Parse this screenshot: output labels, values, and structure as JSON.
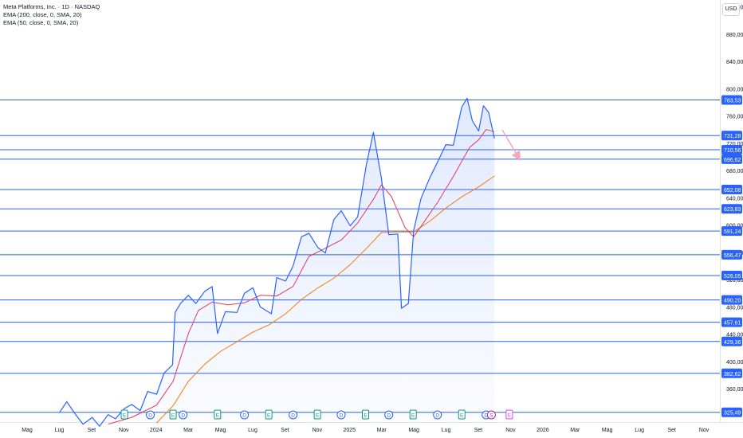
{
  "legend": {
    "title": "Meta Platforms, Inc. · 1D · NASDAQ",
    "ema200": "EMA (200, close, 0, SMA, 20)",
    "ema50": "EMA (50, close, 0, SMA, 20)"
  },
  "currency": "USD",
  "colors": {
    "price": "#2962ff",
    "area_fill": "#2962ff",
    "ema50": "#e03a56",
    "ema200": "#f57c00",
    "level": "#2962ff",
    "level_label_bg": "#2962ff",
    "arrow": "#f7a6b4",
    "axis_text": "#131722"
  },
  "chart_data": {
    "type": "line",
    "title": "Meta Platforms, Inc. · 1D · NASDAQ",
    "ylim": [
      310,
      930
    ],
    "y_ticks": [
      "920,00",
      "880,00",
      "840,00",
      "800,00",
      "760,00",
      "720,00",
      "680,00",
      "640,00",
      "600,00",
      "560,00",
      "520,00",
      "480,00",
      "440,00",
      "400,00",
      "360,00"
    ],
    "x_ticks": [
      "Mag",
      "Lug",
      "Set",
      "Nov",
      "2024",
      "Mar",
      "Mag",
      "Lug",
      "Set",
      "Nov",
      "2025",
      "Mar",
      "Mag",
      "Lug",
      "Set",
      "Nov",
      "2026",
      "Mar",
      "Mag",
      "Lug",
      "Set",
      "Nov"
    ],
    "levels": [
      "783,53",
      "731,28",
      "710,56",
      "696,62",
      "652,08",
      "623,83",
      "591,24",
      "556,47",
      "526,05",
      "490,20",
      "457,61",
      "429,36",
      "382,62",
      "325,49"
    ],
    "series": [
      {
        "name": "Meta Platforms, Inc.",
        "values": [
          [
            "2023-07-01",
            325
          ],
          [
            "2023-07-15",
            341
          ],
          [
            "2023-08-01",
            322
          ],
          [
            "2023-08-15",
            308
          ],
          [
            "2023-09-01",
            318
          ],
          [
            "2023-09-15",
            305
          ],
          [
            "2023-10-01",
            322
          ],
          [
            "2023-10-15",
            316
          ],
          [
            "2023-11-01",
            331
          ],
          [
            "2023-11-15",
            337
          ],
          [
            "2023-12-01",
            328
          ],
          [
            "2023-12-15",
            356
          ],
          [
            "2024-01-01",
            352
          ],
          [
            "2024-01-15",
            383
          ],
          [
            "2024-01-31",
            395
          ],
          [
            "2024-02-05",
            472
          ],
          [
            "2024-02-15",
            485
          ],
          [
            "2024-03-01",
            497
          ],
          [
            "2024-03-15",
            485
          ],
          [
            "2024-04-01",
            503
          ],
          [
            "2024-04-15",
            510
          ],
          [
            "2024-04-25",
            441
          ],
          [
            "2024-05-10",
            473
          ],
          [
            "2024-06-01",
            472
          ],
          [
            "2024-06-15",
            500
          ],
          [
            "2024-07-01",
            508
          ],
          [
            "2024-07-15",
            480
          ],
          [
            "2024-08-05",
            470
          ],
          [
            "2024-08-15",
            523
          ],
          [
            "2024-09-01",
            518
          ],
          [
            "2024-09-15",
            540
          ],
          [
            "2024-10-01",
            583
          ],
          [
            "2024-10-15",
            588
          ],
          [
            "2024-11-01",
            567
          ],
          [
            "2024-11-15",
            559
          ],
          [
            "2024-12-01",
            608
          ],
          [
            "2024-12-15",
            621
          ],
          [
            "2025-01-01",
            599
          ],
          [
            "2025-01-15",
            612
          ],
          [
            "2025-02-01",
            690
          ],
          [
            "2025-02-14",
            736
          ],
          [
            "2025-03-01",
            669
          ],
          [
            "2025-03-15",
            586
          ],
          [
            "2025-04-01",
            587
          ],
          [
            "2025-04-08",
            478
          ],
          [
            "2025-04-21",
            485
          ],
          [
            "2025-05-01",
            592
          ],
          [
            "2025-05-15",
            639
          ],
          [
            "2025-06-01",
            670
          ],
          [
            "2025-06-15",
            692
          ],
          [
            "2025-07-01",
            718
          ],
          [
            "2025-07-15",
            717
          ],
          [
            "2025-07-31",
            773
          ],
          [
            "2025-08-10",
            786
          ],
          [
            "2025-08-20",
            753
          ],
          [
            "2025-09-01",
            738
          ],
          [
            "2025-09-10",
            775
          ],
          [
            "2025-09-20",
            765
          ],
          [
            "2025-10-01",
            727
          ]
        ]
      },
      {
        "name": "EMA (50, close, 0, SMA, 20)",
        "values": [
          [
            "2023-10-01",
            308
          ],
          [
            "2023-11-15",
            318
          ],
          [
            "2024-01-01",
            336
          ],
          [
            "2024-02-01",
            371
          ],
          [
            "2024-03-01",
            441
          ],
          [
            "2024-03-20",
            475
          ],
          [
            "2024-04-15",
            487
          ],
          [
            "2024-05-15",
            483
          ],
          [
            "2024-06-15",
            486
          ],
          [
            "2024-07-15",
            497
          ],
          [
            "2024-08-15",
            496
          ],
          [
            "2024-09-15",
            510
          ],
          [
            "2024-10-15",
            554
          ],
          [
            "2024-11-15",
            566
          ],
          [
            "2024-12-15",
            578
          ],
          [
            "2025-01-15",
            603
          ],
          [
            "2025-02-15",
            639
          ],
          [
            "2025-03-01",
            659
          ],
          [
            "2025-03-20",
            642
          ],
          [
            "2025-04-15",
            596
          ],
          [
            "2025-05-01",
            583
          ],
          [
            "2025-05-15",
            598
          ],
          [
            "2025-06-15",
            633
          ],
          [
            "2025-07-15",
            671
          ],
          [
            "2025-08-01",
            695
          ],
          [
            "2025-08-15",
            714
          ],
          [
            "2025-09-01",
            725
          ],
          [
            "2025-09-15",
            740
          ],
          [
            "2025-10-01",
            737
          ]
        ]
      },
      {
        "name": "EMA (200, close, 0, SMA, 20)",
        "values": [
          [
            "2024-01-01",
            310
          ],
          [
            "2024-02-01",
            335
          ],
          [
            "2024-03-01",
            371
          ],
          [
            "2024-04-01",
            396
          ],
          [
            "2024-05-01",
            415
          ],
          [
            "2024-06-01",
            429
          ],
          [
            "2024-07-01",
            443
          ],
          [
            "2024-08-01",
            454
          ],
          [
            "2024-09-01",
            470
          ],
          [
            "2024-10-01",
            491
          ],
          [
            "2024-11-01",
            508
          ],
          [
            "2024-12-01",
            522
          ],
          [
            "2025-01-01",
            542
          ],
          [
            "2025-02-01",
            566
          ],
          [
            "2025-03-01",
            589
          ],
          [
            "2025-04-01",
            590
          ],
          [
            "2025-05-01",
            590
          ],
          [
            "2025-06-01",
            606
          ],
          [
            "2025-07-01",
            625
          ],
          [
            "2025-08-01",
            642
          ],
          [
            "2025-09-01",
            656
          ],
          [
            "2025-10-01",
            672
          ]
        ]
      }
    ],
    "events": [
      {
        "date": "2023-11-01",
        "type": "E"
      },
      {
        "date": "2023-12-20",
        "type": "D"
      },
      {
        "date": "2024-02-01",
        "type": "E"
      },
      {
        "date": "2024-02-20",
        "type": "D"
      },
      {
        "date": "2024-04-25",
        "type": "E"
      },
      {
        "date": "2024-06-15",
        "type": "D"
      },
      {
        "date": "2024-07-31",
        "type": "E"
      },
      {
        "date": "2024-09-15",
        "type": "D"
      },
      {
        "date": "2024-10-31",
        "type": "E"
      },
      {
        "date": "2024-12-15",
        "type": "D"
      },
      {
        "date": "2025-01-30",
        "type": "E"
      },
      {
        "date": "2025-03-15",
        "type": "D"
      },
      {
        "date": "2025-04-30",
        "type": "E"
      },
      {
        "date": "2025-06-15",
        "type": "D"
      },
      {
        "date": "2025-07-31",
        "type": "E"
      },
      {
        "date": "2025-09-15",
        "type": "D"
      },
      {
        "date": "2025-09-25",
        "type": "S"
      },
      {
        "date": "2025-10-29",
        "type": "E"
      }
    ]
  }
}
